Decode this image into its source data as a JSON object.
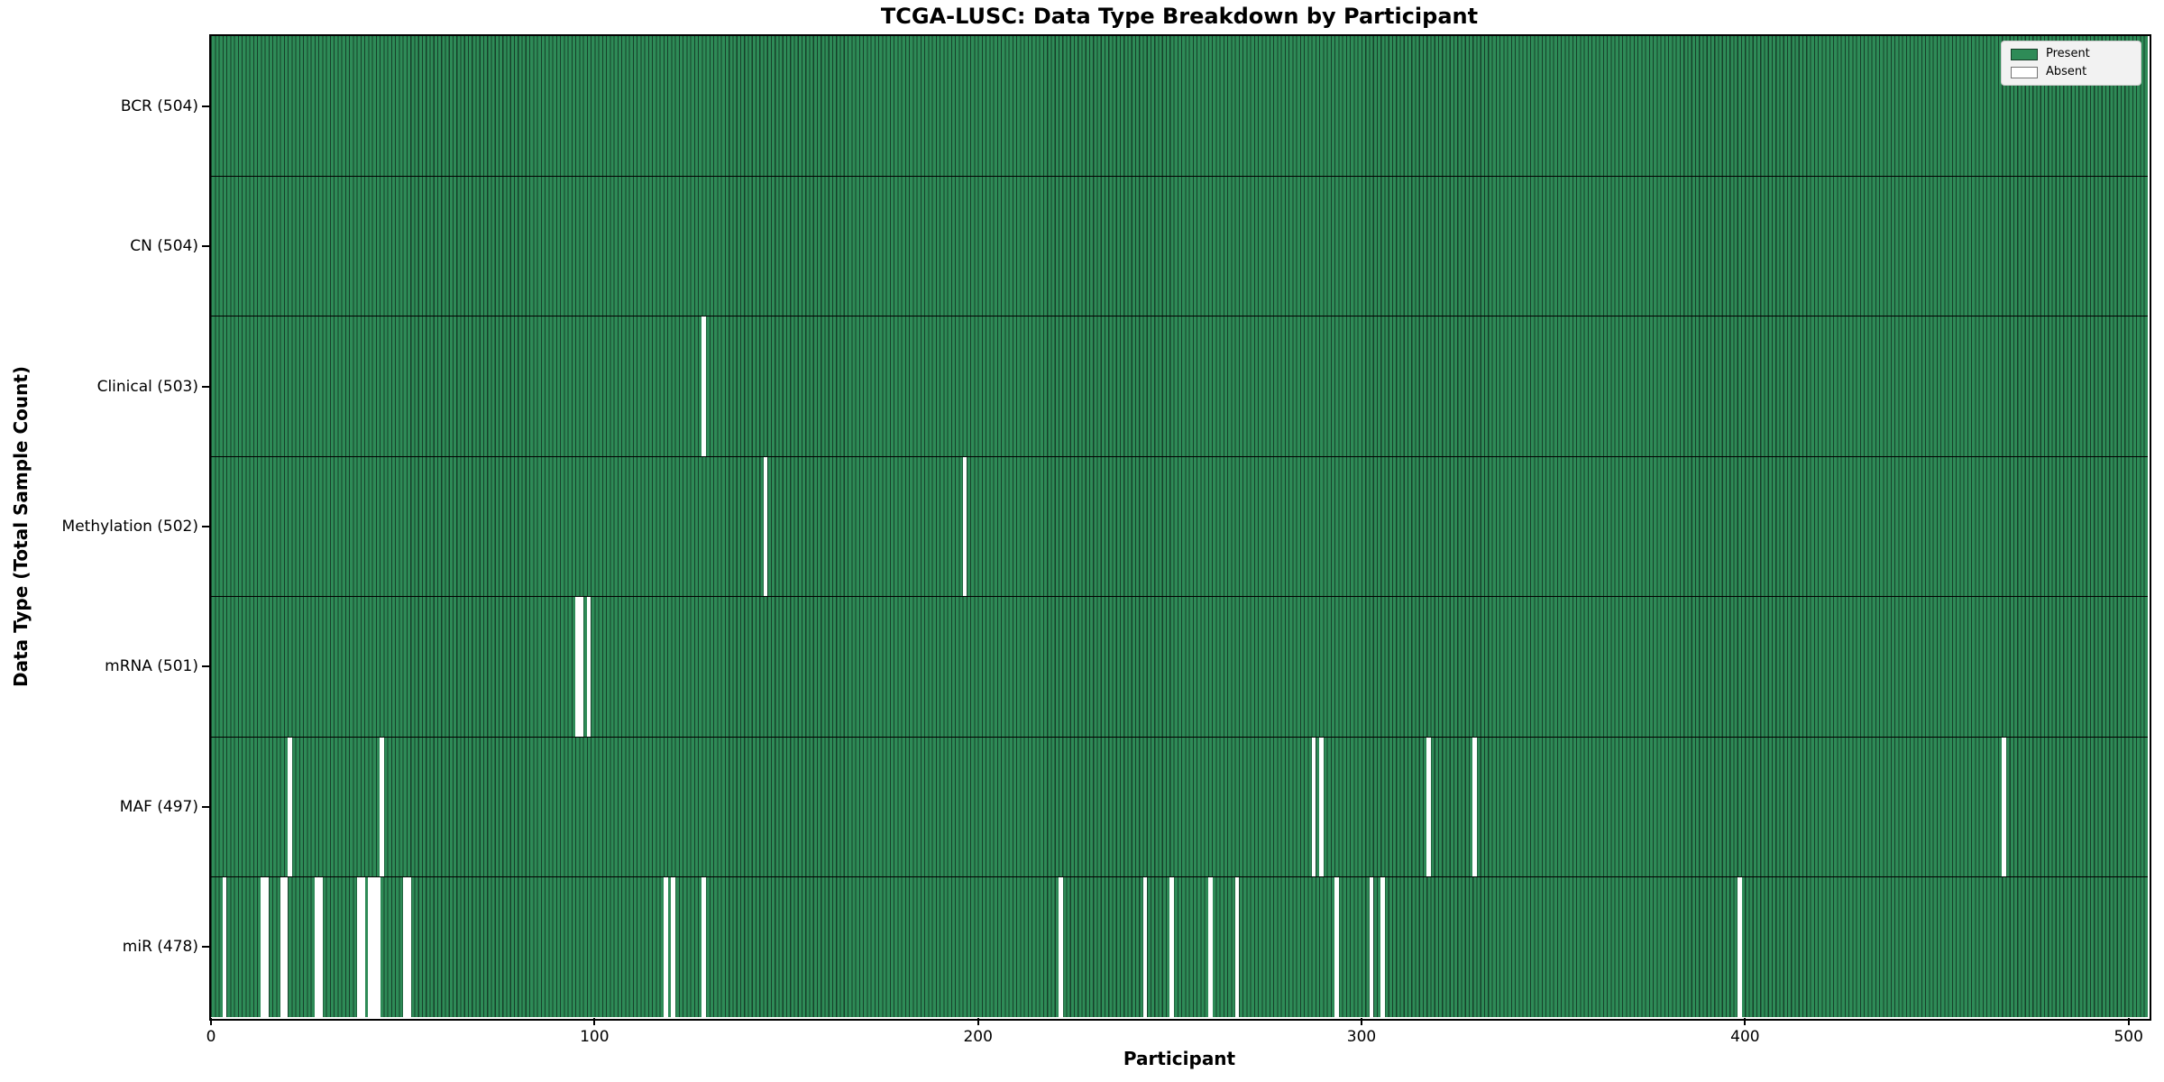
{
  "figure": {
    "title": "TCGA-LUSC: Data Type Breakdown by Participant",
    "xlabel": "Participant",
    "ylabel": "Data Type (Total Sample Count)"
  },
  "colors": {
    "present": "#2e8b57",
    "bar_edge": "#16402a",
    "absent": "#ffffff",
    "row_divider": "#000000",
    "legend_bg": "#f2f2f2",
    "legend_border": "#cccccc"
  },
  "legend_items": [
    {
      "label": "Present",
      "color": "#2e8b57"
    },
    {
      "label": "Absent",
      "color": "#ffffff"
    }
  ],
  "chart_data": {
    "type": "heatmap",
    "title": "TCGA-LUSC: Data Type Breakdown by Participant",
    "xlabel": "Participant",
    "ylabel": "Data Type (Total Sample Count)",
    "legend": [
      "Present",
      "Absent"
    ],
    "legend_position": "upper right",
    "n_participants": 504,
    "xlim": [
      0,
      505
    ],
    "x_ticks": [
      0,
      100,
      200,
      300,
      400,
      500
    ],
    "cell_values": {
      "present": 1,
      "absent": 0
    },
    "rows": [
      {
        "name": "BCR",
        "label": "BCR (504)",
        "total": 504,
        "absent_participants": []
      },
      {
        "name": "CN",
        "label": "CN (504)",
        "total": 504,
        "absent_participants": []
      },
      {
        "name": "Clinical",
        "label": "Clinical (503)",
        "total": 503,
        "absent_participants": [
          128
        ]
      },
      {
        "name": "Methylation",
        "label": "Methylation (502)",
        "total": 502,
        "absent_participants": [
          144,
          196
        ]
      },
      {
        "name": "mRNA",
        "label": "mRNA (501)",
        "total": 501,
        "absent_participants": [
          95,
          96,
          98
        ]
      },
      {
        "name": "MAF",
        "label": "MAF (497)",
        "total": 497,
        "absent_participants": [
          20,
          44,
          287,
          289,
          317,
          329,
          467
        ]
      },
      {
        "name": "miR",
        "label": "miR (478)",
        "total": 478,
        "absent_participants": [
          3,
          13,
          14,
          18,
          19,
          27,
          28,
          38,
          39,
          41,
          42,
          43,
          50,
          51,
          118,
          120,
          128,
          221,
          243,
          250,
          260,
          267,
          293,
          302,
          305,
          398
        ]
      }
    ]
  }
}
